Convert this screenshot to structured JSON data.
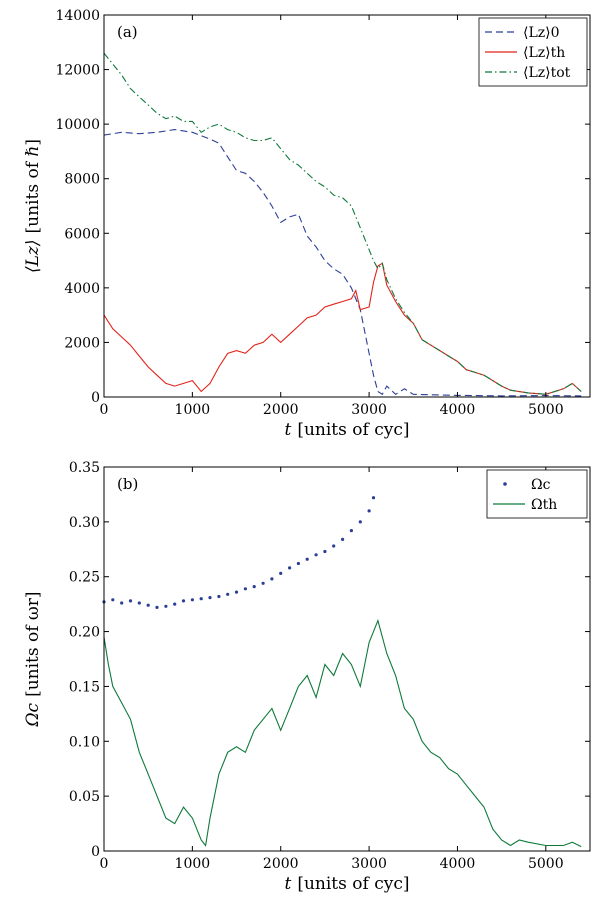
{
  "chart_data": [
    {
      "type": "line",
      "panel_label": "(a)",
      "xlabel_var": "t",
      "xlabel_units": "[units of cyc]",
      "ylabel_var": "⟨Lz⟩",
      "ylabel_units": "[units of ℏ]",
      "xlim": [
        0,
        5500
      ],
      "ylim": [
        0,
        14000
      ],
      "xticks": [
        0,
        1000,
        2000,
        3000,
        4000,
        5000
      ],
      "yticks": [
        0,
        2000,
        4000,
        6000,
        8000,
        10000,
        12000,
        14000
      ],
      "grid": false,
      "legend_position": "top-right",
      "series": [
        {
          "name": "⟨Lz⟩0",
          "color": "#2b3f96",
          "style": "dashed",
          "x": [
            0,
            200,
            400,
            600,
            800,
            1000,
            1200,
            1300,
            1400,
            1500,
            1600,
            1700,
            1800,
            1900,
            2000,
            2100,
            2200,
            2300,
            2400,
            2500,
            2600,
            2700,
            2800,
            2900,
            3000,
            3050,
            3100,
            3150,
            3200,
            3300,
            3400,
            3500,
            3700,
            4000,
            4500,
            5000,
            5400
          ],
          "y": [
            9600,
            9700,
            9650,
            9700,
            9800,
            9700,
            9450,
            9300,
            8800,
            8300,
            8200,
            7900,
            7500,
            7000,
            6400,
            6600,
            6700,
            5900,
            5500,
            5000,
            4700,
            4500,
            4000,
            3200,
            1600,
            800,
            200,
            100,
            400,
            100,
            300,
            100,
            80,
            60,
            40,
            50,
            40
          ]
        },
        {
          "name": "⟨Lz⟩th",
          "color": "#e2231a",
          "style": "solid",
          "x": [
            0,
            100,
            200,
            300,
            400,
            500,
            600,
            700,
            800,
            900,
            1000,
            1100,
            1200,
            1300,
            1400,
            1500,
            1600,
            1700,
            1800,
            1900,
            2000,
            2100,
            2200,
            2300,
            2400,
            2500,
            2600,
            2700,
            2800,
            2850,
            2900,
            3000,
            3050,
            3100,
            3150,
            3200,
            3300,
            3400,
            3500,
            3600,
            3700,
            3800,
            3900,
            4000,
            4100,
            4200,
            4300,
            4400,
            4500,
            4600,
            4800,
            5000,
            5200,
            5300,
            5400
          ],
          "y": [
            3000,
            2500,
            2200,
            1900,
            1500,
            1100,
            800,
            500,
            400,
            500,
            600,
            200,
            500,
            1100,
            1600,
            1700,
            1600,
            1900,
            2000,
            2300,
            2000,
            2300,
            2600,
            2900,
            3000,
            3300,
            3400,
            3500,
            3600,
            3900,
            3200,
            3300,
            4200,
            4800,
            4900,
            4100,
            3500,
            3000,
            2700,
            2100,
            1900,
            1700,
            1500,
            1300,
            1000,
            900,
            800,
            600,
            400,
            250,
            150,
            100,
            300,
            500,
            200
          ]
        },
        {
          "name": "⟨Lz⟩tot",
          "color": "#0f7a3a",
          "style": "dashdot",
          "x": [
            0,
            100,
            200,
            300,
            400,
            500,
            600,
            700,
            800,
            900,
            1000,
            1100,
            1200,
            1300,
            1400,
            1500,
            1600,
            1700,
            1800,
            1900,
            2000,
            2100,
            2200,
            2300,
            2400,
            2500,
            2600,
            2700,
            2800,
            2900,
            3000,
            3050,
            3100,
            3150,
            3200,
            3300,
            3400,
            3500,
            3600,
            3700,
            3800,
            3900,
            4000,
            4100,
            4200,
            4300,
            4400,
            4500,
            4600,
            4800,
            5000,
            5200,
            5300,
            5400
          ],
          "y": [
            12600,
            12200,
            11800,
            11300,
            11000,
            10700,
            10400,
            10200,
            10300,
            10100,
            10100,
            9700,
            9900,
            10000,
            9800,
            9700,
            9500,
            9400,
            9400,
            9500,
            9100,
            8700,
            8500,
            8200,
            7900,
            7700,
            7400,
            7300,
            7000,
            6200,
            5400,
            5000,
            4700,
            4900,
            4300,
            3600,
            3100,
            2700,
            2100,
            1900,
            1700,
            1500,
            1300,
            1000,
            900,
            800,
            600,
            400,
            250,
            150,
            100,
            300,
            500,
            200
          ]
        }
      ]
    },
    {
      "type": "scatter",
      "panel_label": "(b)",
      "xlabel_var": "t",
      "xlabel_units": "[units of cyc]",
      "ylabel_var": "Ωc",
      "ylabel_units": "[units of ωr]",
      "xlim": [
        0,
        5500
      ],
      "ylim": [
        0,
        0.35
      ],
      "xticks": [
        0,
        1000,
        2000,
        3000,
        4000,
        5000
      ],
      "yticks": [
        0,
        0.05,
        0.1,
        0.15,
        0.2,
        0.25,
        0.3,
        0.35
      ],
      "ytick_labels": [
        "0",
        "0.05",
        "0.10",
        "0.15",
        "0.20",
        "0.25",
        "0.30",
        "0.35"
      ],
      "grid": false,
      "legend_position": "top-right",
      "series": [
        {
          "name": "Ωc",
          "color": "#2b3f96",
          "style": "dots",
          "x": [
            0,
            100,
            200,
            300,
            400,
            500,
            600,
            700,
            800,
            900,
            1000,
            1100,
            1200,
            1300,
            1400,
            1500,
            1600,
            1700,
            1800,
            1900,
            2000,
            2100,
            2200,
            2300,
            2400,
            2500,
            2600,
            2700,
            2800,
            2900,
            3000,
            3050
          ],
          "y": [
            0.227,
            0.229,
            0.226,
            0.228,
            0.226,
            0.224,
            0.222,
            0.223,
            0.225,
            0.228,
            0.229,
            0.23,
            0.231,
            0.232,
            0.234,
            0.236,
            0.239,
            0.241,
            0.244,
            0.248,
            0.253,
            0.258,
            0.262,
            0.266,
            0.27,
            0.273,
            0.278,
            0.284,
            0.292,
            0.3,
            0.31,
            0.322
          ]
        },
        {
          "name": "Ωth",
          "color": "#0f7a3a",
          "style": "solid",
          "x": [
            0,
            50,
            100,
            200,
            300,
            400,
            500,
            600,
            700,
            800,
            900,
            1000,
            1100,
            1150,
            1200,
            1300,
            1400,
            1500,
            1600,
            1700,
            1800,
            1900,
            2000,
            2100,
            2200,
            2300,
            2400,
            2500,
            2600,
            2700,
            2800,
            2900,
            3000,
            3100,
            3200,
            3300,
            3400,
            3500,
            3600,
            3700,
            3800,
            3900,
            4000,
            4100,
            4200,
            4300,
            4400,
            4500,
            4600,
            4700,
            4800,
            5000,
            5200,
            5300,
            5400
          ],
          "y": [
            0.195,
            0.17,
            0.15,
            0.135,
            0.12,
            0.09,
            0.07,
            0.05,
            0.03,
            0.025,
            0.04,
            0.03,
            0.01,
            0.005,
            0.03,
            0.07,
            0.09,
            0.095,
            0.09,
            0.11,
            0.12,
            0.13,
            0.11,
            0.13,
            0.15,
            0.16,
            0.14,
            0.17,
            0.16,
            0.18,
            0.17,
            0.15,
            0.19,
            0.21,
            0.18,
            0.16,
            0.13,
            0.12,
            0.1,
            0.09,
            0.085,
            0.075,
            0.07,
            0.06,
            0.05,
            0.04,
            0.02,
            0.01,
            0.005,
            0.01,
            0.008,
            0.005,
            0.005,
            0.008,
            0.004
          ]
        }
      ]
    }
  ]
}
